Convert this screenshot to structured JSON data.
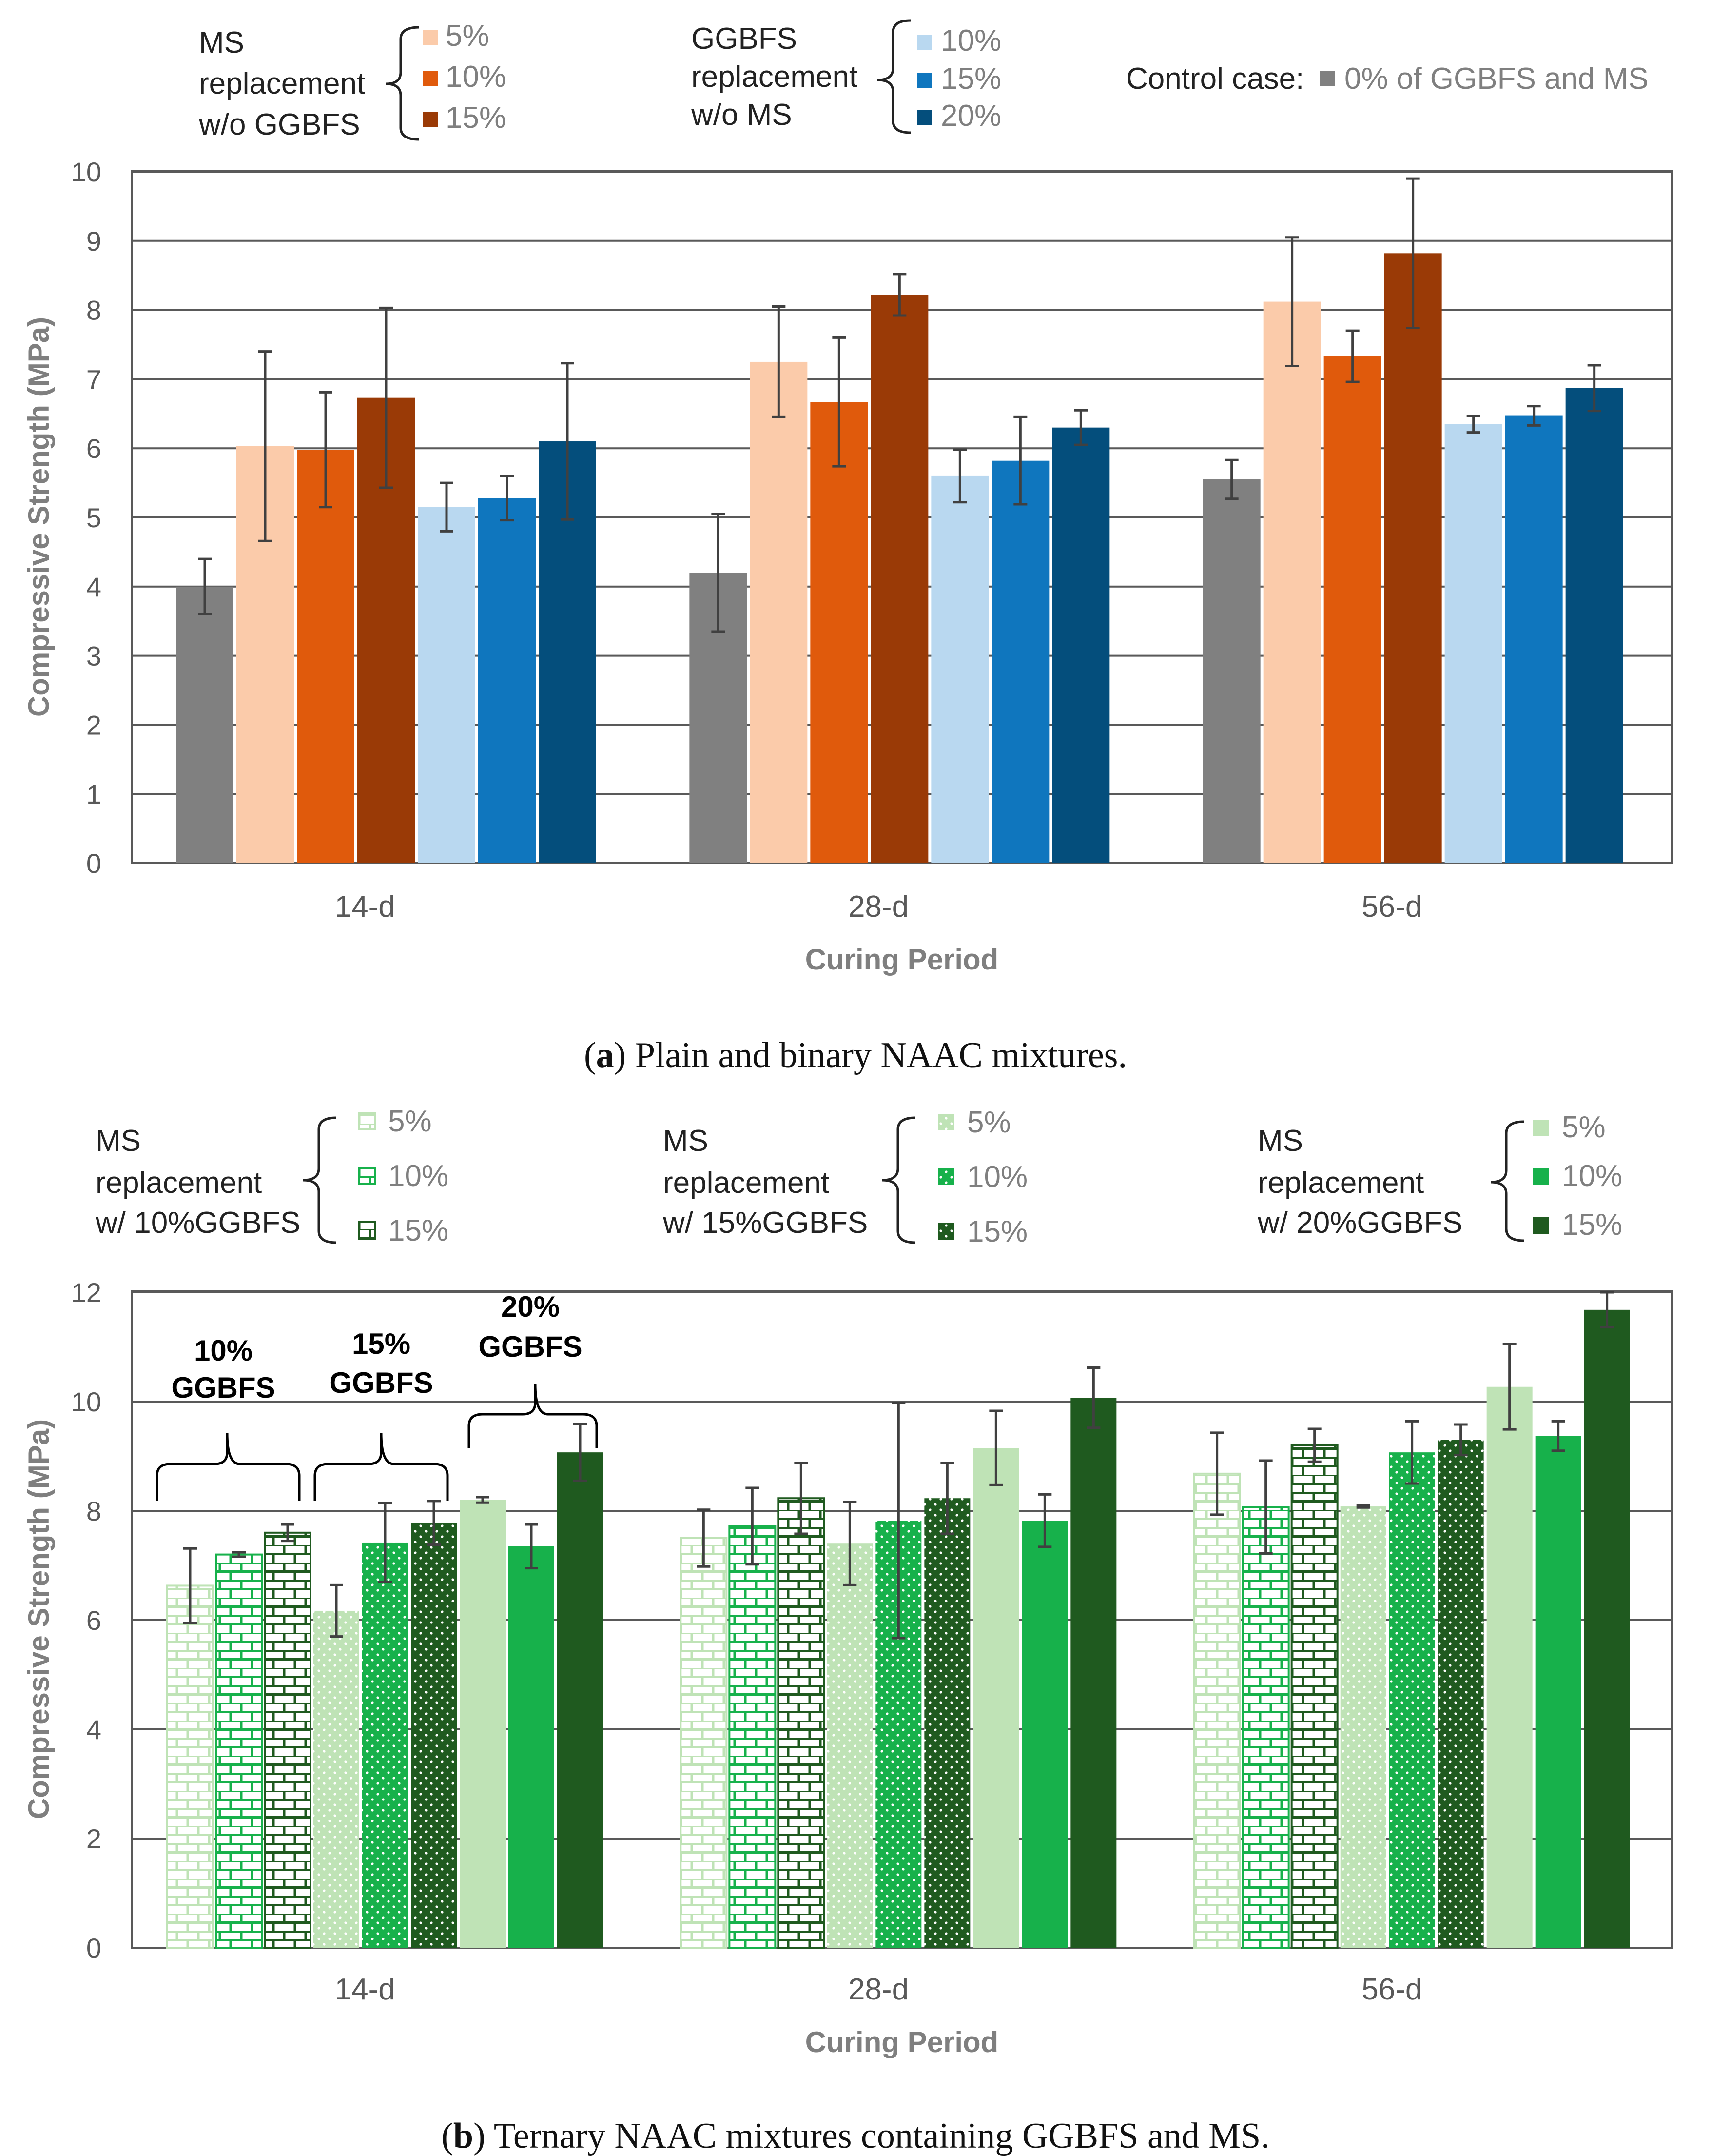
{
  "figure": {
    "caption_a_label": "a",
    "caption_a_text": " Plain and binary NAAC mixtures.",
    "caption_b_label": "b",
    "caption_b_text": " Ternary NAAC mixtures containing GGBFS and MS."
  },
  "legend_a": {
    "group1_label": [
      "MS",
      "replacement",
      "w/o GGBFS"
    ],
    "group1_items": [
      "5%",
      "10%",
      "15%"
    ],
    "group2_label": [
      "GGBFS",
      "replacement",
      "w/o MS"
    ],
    "group2_items": [
      "10%",
      "15%",
      "20%"
    ],
    "control_label": "Control case:",
    "control_item": "0% of GGBFS and MS"
  },
  "legend_b": {
    "group1_label": [
      "MS",
      "replacement",
      "w/ 10%GGBFS"
    ],
    "group2_label": [
      "MS",
      "replacement",
      "w/ 15%GGBFS"
    ],
    "group3_label": [
      "MS",
      "replacement",
      "w/ 20%GGBFS"
    ],
    "items": [
      "5%",
      "10%",
      "15%"
    ]
  },
  "annotations_b": [
    [
      "10%",
      "GGBFS"
    ],
    [
      "15%",
      "GGBFS"
    ],
    [
      "20%",
      "GGBFS"
    ]
  ],
  "colors": {
    "control": "#808080",
    "ms5": "#fbcbaa",
    "ms10": "#e05a0c",
    "ms15": "#9a3a06",
    "gg10": "#b9d8f0",
    "gg15": "#0f76be",
    "gg20": "#044e7c",
    "g_light": "#bfe3b6",
    "g_mid": "#17b14b",
    "g_dark": "#1f5a1f",
    "error": "#404040",
    "grid": "#595959"
  },
  "chart_data": [
    {
      "type": "bar",
      "title": "",
      "xlabel": "Curing Period",
      "ylabel": "Compressive Strength (MPa)",
      "ylim": [
        0,
        10
      ],
      "yticks": [
        0,
        1,
        2,
        3,
        4,
        5,
        6,
        7,
        8,
        9,
        10
      ],
      "grid": true,
      "categories": [
        "14-d",
        "28-d",
        "56-d"
      ],
      "series": [
        {
          "legend": "0% of GGBFS and MS",
          "color": "#808080",
          "values": [
            4.0,
            4.2,
            5.55
          ],
          "error": [
            0.4,
            0.85,
            0.28
          ]
        },
        {
          "legend": "MS 5% w/o GGBFS",
          "color": "#fbcbaa",
          "values": [
            6.03,
            7.25,
            8.12
          ],
          "error": [
            1.37,
            0.8,
            0.93
          ]
        },
        {
          "legend": "MS 10% w/o GGBFS",
          "color": "#e05a0c",
          "values": [
            5.98,
            6.67,
            7.33
          ],
          "error": [
            0.83,
            0.93,
            0.37
          ]
        },
        {
          "legend": "MS 15% w/o GGBFS",
          "color": "#9a3a06",
          "values": [
            6.73,
            8.22,
            8.82
          ],
          "error": [
            1.3,
            0.3,
            1.08
          ]
        },
        {
          "legend": "GGBFS 10% w/o MS",
          "color": "#b9d8f0",
          "values": [
            5.15,
            5.6,
            6.35
          ],
          "error": [
            0.35,
            0.38,
            0.12
          ]
        },
        {
          "legend": "GGBFS 15% w/o MS",
          "color": "#0f76be",
          "values": [
            5.28,
            5.82,
            6.47
          ],
          "error": [
            0.32,
            0.63,
            0.14
          ]
        },
        {
          "legend": "GGBFS 20% w/o MS",
          "color": "#044e7c",
          "values": [
            6.1,
            6.3,
            6.87
          ],
          "error": [
            1.13,
            0.25,
            0.33
          ]
        }
      ]
    },
    {
      "type": "bar",
      "title": "",
      "xlabel": "Curing Period",
      "ylabel": "Compressive Strength (MPa)",
      "ylim": [
        0,
        12
      ],
      "yticks": [
        0,
        2,
        4,
        6,
        8,
        10,
        12
      ],
      "grid": true,
      "categories": [
        "14-d",
        "28-d",
        "56-d"
      ],
      "series": [
        {
          "legend": "MS 5% w/ 10%GGBFS",
          "pattern": "brick",
          "color": "#bfe3b6",
          "values": [
            6.63,
            7.5,
            8.68
          ],
          "error": [
            0.68,
            0.52,
            0.75
          ]
        },
        {
          "legend": "MS 10% w/ 10%GGBFS",
          "pattern": "brick",
          "color": "#17b14b",
          "values": [
            7.2,
            7.72,
            8.07
          ],
          "error": [
            0.04,
            0.7,
            0.85
          ]
        },
        {
          "legend": "MS 15% w/ 10%GGBFS",
          "pattern": "brick",
          "color": "#1f5a1f",
          "values": [
            7.6,
            8.23,
            9.2
          ],
          "error": [
            0.15,
            0.65,
            0.3
          ]
        },
        {
          "legend": "MS 5% w/ 15%GGBFS",
          "pattern": "dots",
          "color": "#bfe3b6",
          "values": [
            6.17,
            7.4,
            8.08
          ],
          "error": [
            0.47,
            0.76,
            0.02
          ]
        },
        {
          "legend": "MS 10% w/ 15%GGBFS",
          "pattern": "dots",
          "color": "#17b14b",
          "values": [
            7.42,
            7.82,
            9.07
          ],
          "error": [
            0.72,
            2.15,
            0.57
          ]
        },
        {
          "legend": "MS 15% w/ 15%GGBFS",
          "pattern": "dots",
          "color": "#1f5a1f",
          "values": [
            7.78,
            8.23,
            9.3
          ],
          "error": [
            0.4,
            0.65,
            0.28
          ]
        },
        {
          "legend": "MS 5% w/ 20%GGBFS",
          "pattern": "solid",
          "color": "#bfe3b6",
          "values": [
            8.2,
            9.15,
            10.27
          ],
          "error": [
            0.05,
            0.68,
            0.78
          ]
        },
        {
          "legend": "MS 10% w/ 20%GGBFS",
          "pattern": "solid",
          "color": "#17b14b",
          "values": [
            7.35,
            7.82,
            9.37
          ],
          "error": [
            0.4,
            0.48,
            0.27
          ]
        },
        {
          "legend": "MS 15% w/ 20%GGBFS",
          "pattern": "solid",
          "color": "#1f5a1f",
          "values": [
            9.07,
            10.07,
            11.68
          ],
          "error": [
            0.52,
            0.55,
            0.32
          ]
        }
      ]
    }
  ]
}
